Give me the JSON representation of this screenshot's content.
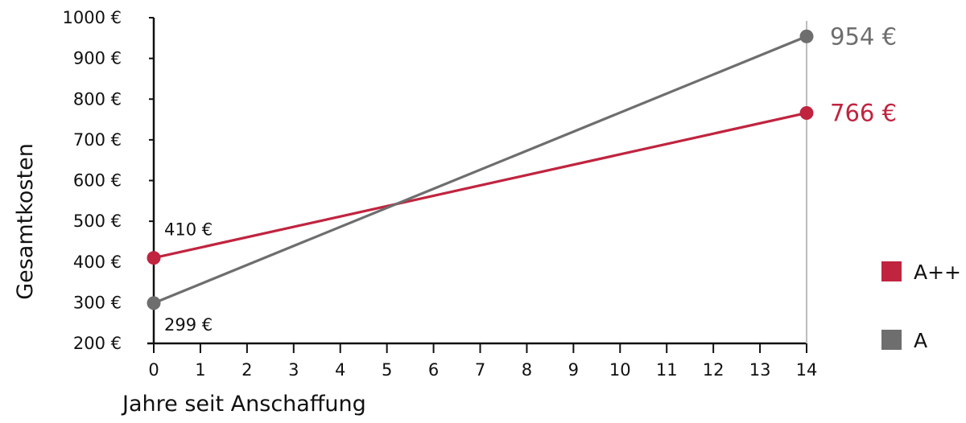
{
  "chart_data": {
    "type": "line",
    "xlabel": "Jahre seit Anschaffung",
    "ylabel": "Gesamtkosten",
    "xlim": [
      0,
      14
    ],
    "ylim": [
      200,
      1000
    ],
    "x_ticks": [
      0,
      1,
      2,
      3,
      4,
      5,
      6,
      7,
      8,
      9,
      10,
      11,
      12,
      13,
      14
    ],
    "x_tick_labels": [
      "0",
      "1",
      "2",
      "3",
      "4",
      "5",
      "6",
      "7",
      "8",
      "9",
      "10",
      "11",
      "12",
      "13",
      "14"
    ],
    "y_ticks": [
      200,
      300,
      400,
      500,
      600,
      700,
      800,
      900,
      1000
    ],
    "y_tick_labels": [
      "200 €",
      "300 €",
      "400 €",
      "500 €",
      "600 €",
      "700 €",
      "800 €",
      "900 €",
      "1000 €"
    ],
    "grid": false,
    "legend_position": "right",
    "series": [
      {
        "name": "A++",
        "color": "#c0243f",
        "x": [
          0,
          14
        ],
        "y": [
          410,
          766
        ],
        "point_labels": [
          "410 €",
          "766 €"
        ]
      },
      {
        "name": "A",
        "color": "#6e6e6e",
        "x": [
          0,
          14
        ],
        "y": [
          299,
          954
        ],
        "point_labels": [
          "299 €",
          "954 €"
        ]
      }
    ]
  }
}
